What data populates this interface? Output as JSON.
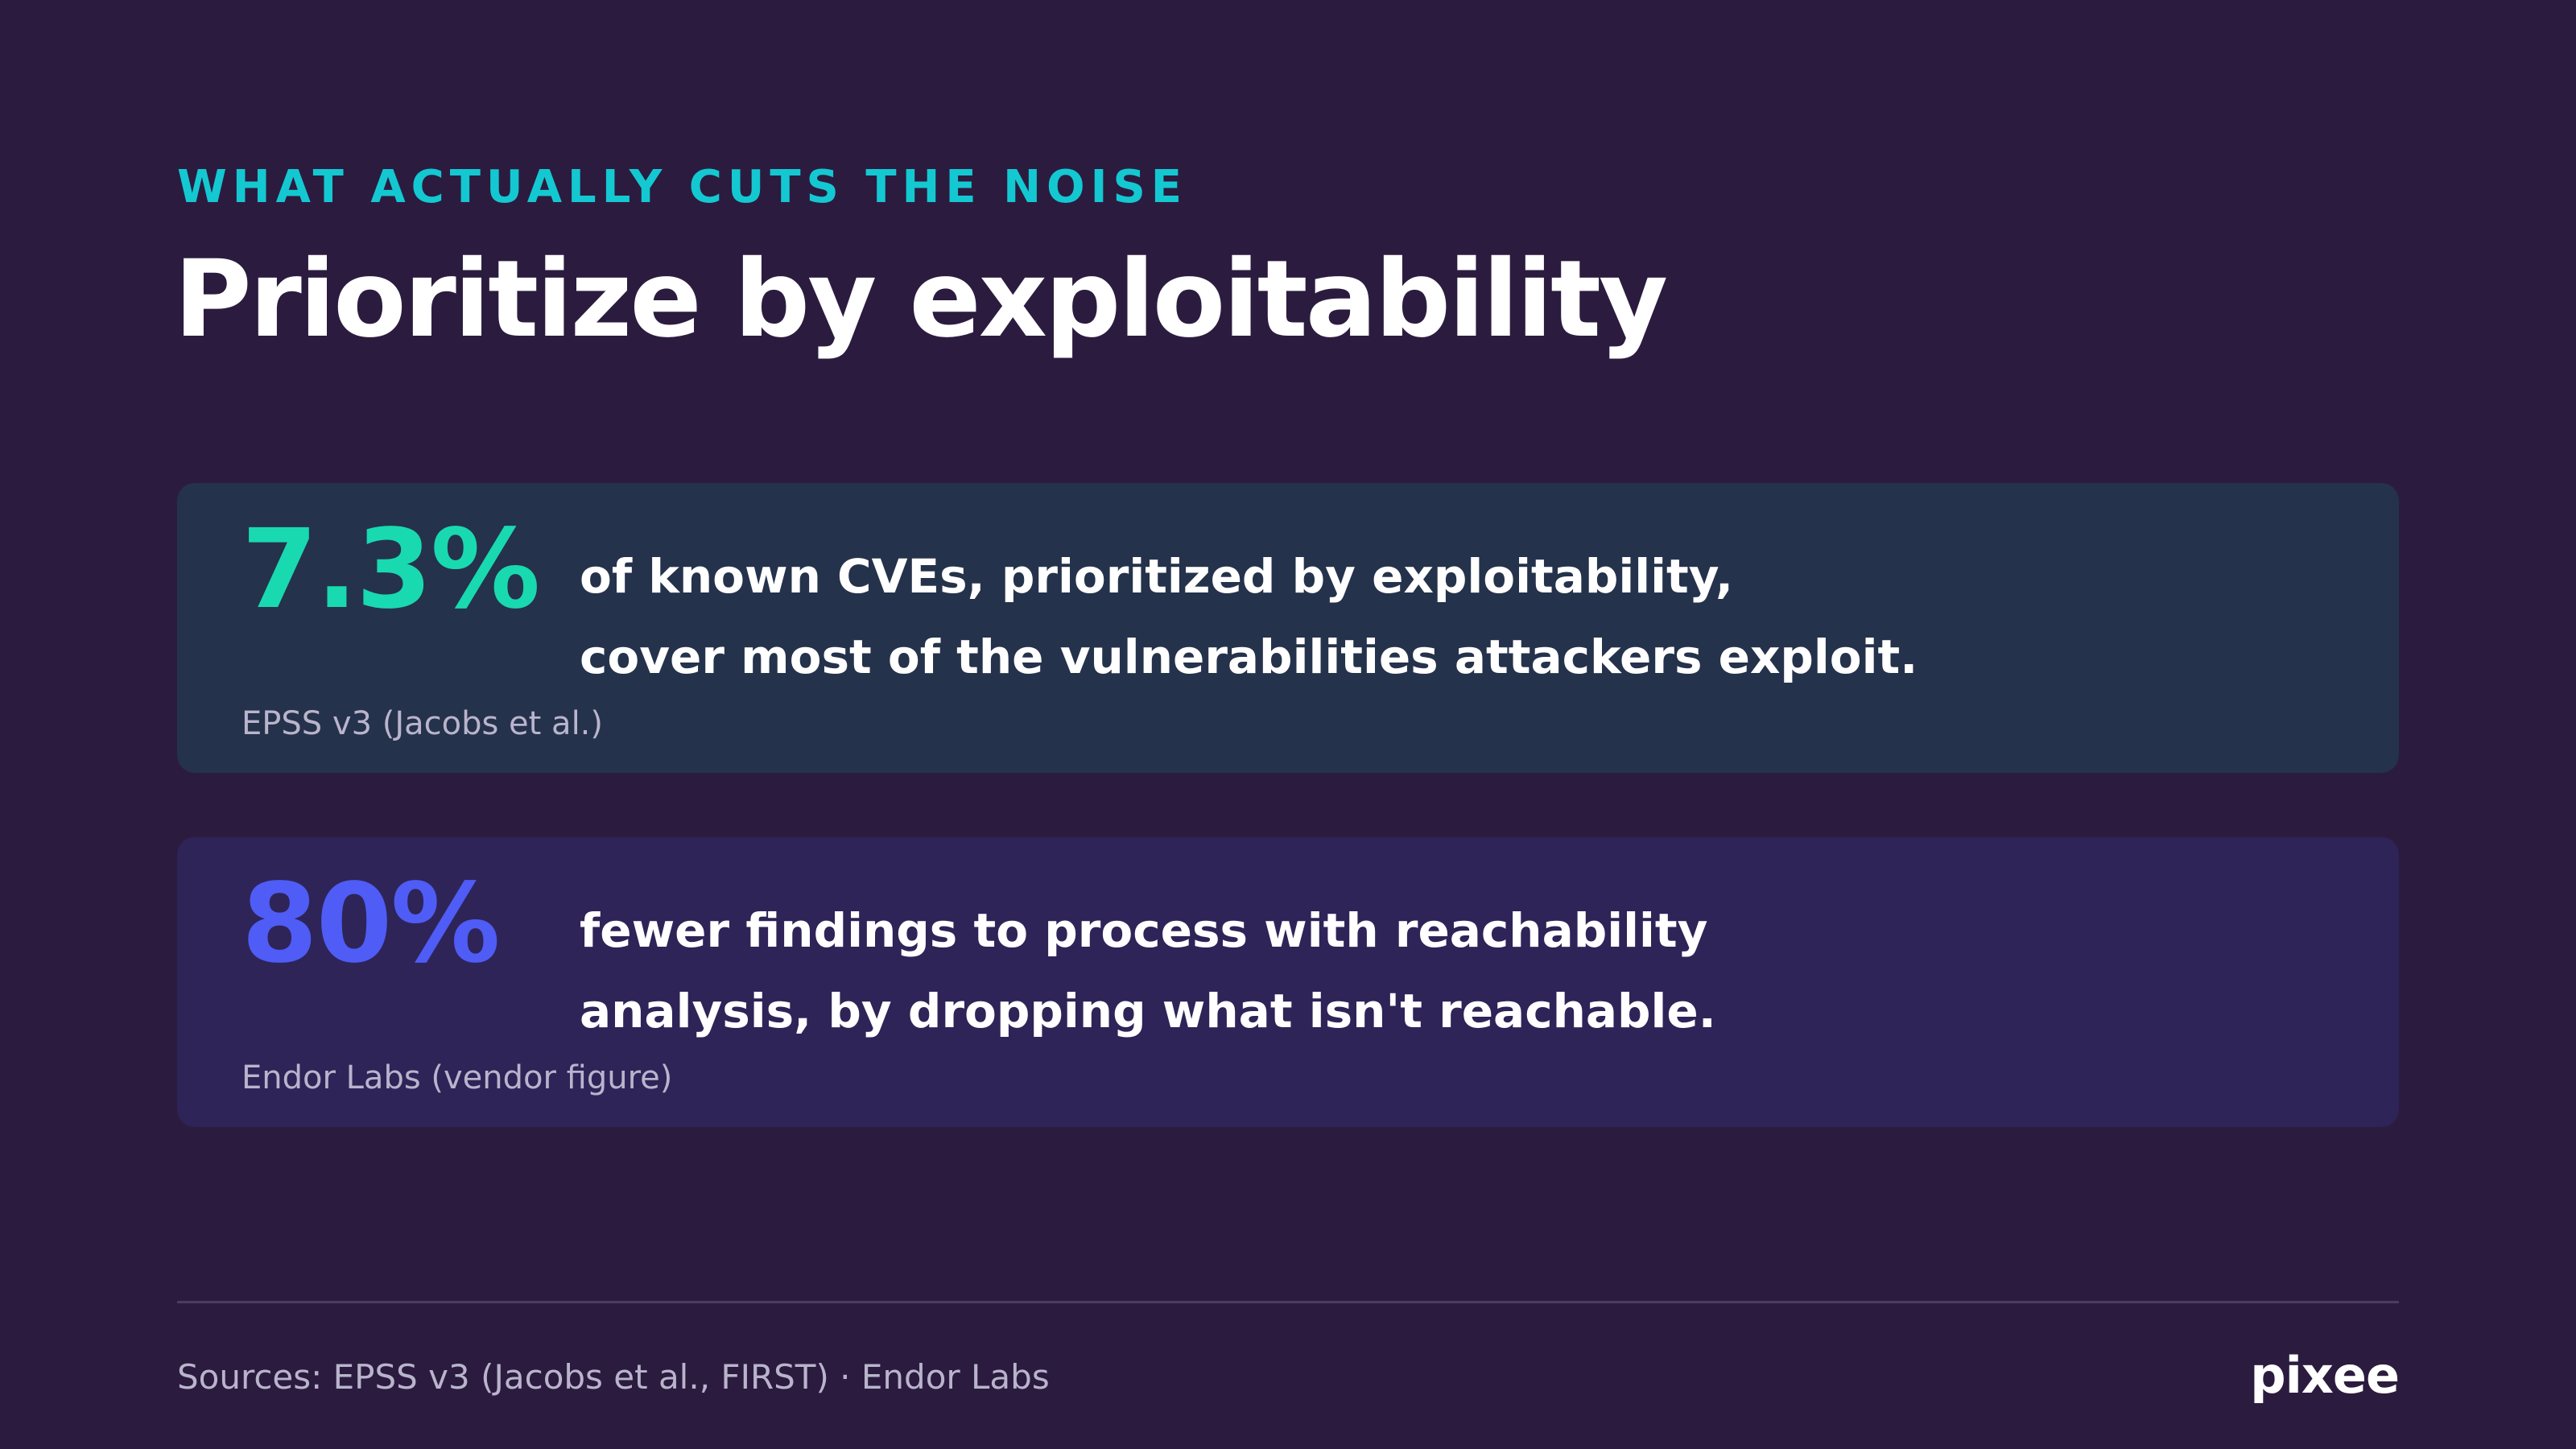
{
  "header": {
    "eyebrow": "WHAT ACTUALLY CUTS THE NOISE",
    "title": "Prioritize by exploitability"
  },
  "cards": [
    {
      "stat": "7.3%",
      "lines": [
        "of known CVEs, prioritized by exploitability,",
        "cover most of the vulnerabilities attackers exploit."
      ],
      "citation": "EPSS v3 (Jacobs et al.)"
    },
    {
      "stat": "80%",
      "lines": [
        "fewer findings to process with reachability",
        "analysis, by dropping what isn't reachable."
      ],
      "citation": "Endor Labs (vendor figure)"
    }
  ],
  "footer": {
    "sources": "Sources: EPSS v3 (Jacobs et al., FIRST) · Endor Labs",
    "logo": "pixee"
  },
  "colors": {
    "background": "#2b1c3f",
    "accent_teal": "#14c8d2",
    "stat_green": "#19d9b0",
    "stat_blue": "#4f5cf5",
    "card_1_bg": "#25324b",
    "card_2_bg": "#2e2458"
  }
}
